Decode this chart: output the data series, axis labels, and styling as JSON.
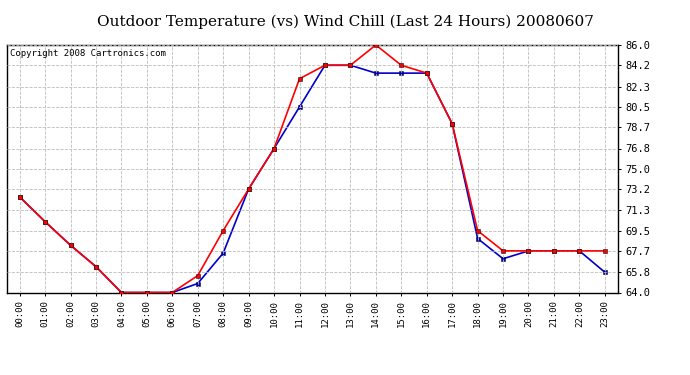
{
  "title": "Outdoor Temperature (vs) Wind Chill (Last 24 Hours) 20080607",
  "copyright": "Copyright 2008 Cartronics.com",
  "hours": [
    "00:00",
    "01:00",
    "02:00",
    "03:00",
    "04:00",
    "05:00",
    "06:00",
    "07:00",
    "08:00",
    "09:00",
    "10:00",
    "11:00",
    "12:00",
    "13:00",
    "14:00",
    "15:00",
    "16:00",
    "17:00",
    "18:00",
    "19:00",
    "20:00",
    "21:00",
    "22:00",
    "23:00"
  ],
  "temp": [
    72.5,
    70.3,
    68.2,
    66.3,
    64.0,
    64.0,
    64.0,
    65.5,
    69.5,
    73.2,
    76.8,
    83.0,
    84.2,
    84.2,
    86.0,
    84.2,
    83.5,
    79.0,
    69.5,
    67.7,
    67.7,
    67.7,
    67.7,
    67.7
  ],
  "windchill": [
    72.5,
    70.3,
    68.2,
    66.3,
    64.0,
    64.0,
    64.0,
    64.8,
    67.5,
    73.2,
    76.8,
    80.5,
    84.2,
    84.2,
    83.5,
    83.5,
    83.5,
    79.0,
    68.8,
    67.0,
    67.7,
    67.7,
    67.7,
    65.8
  ],
  "temp_color": "#FF0000",
  "windchill_color": "#0000CC",
  "bg_color": "#FFFFFF",
  "grid_color": "#BBBBBB",
  "ylim_min": 64.0,
  "ylim_max": 86.0,
  "yticks": [
    64.0,
    65.8,
    67.7,
    69.5,
    71.3,
    73.2,
    75.0,
    76.8,
    78.7,
    80.5,
    82.3,
    84.2,
    86.0
  ],
  "title_fontsize": 11,
  "copyright_fontsize": 6.5,
  "marker": "s",
  "marker_size": 3,
  "linewidth": 1.2
}
